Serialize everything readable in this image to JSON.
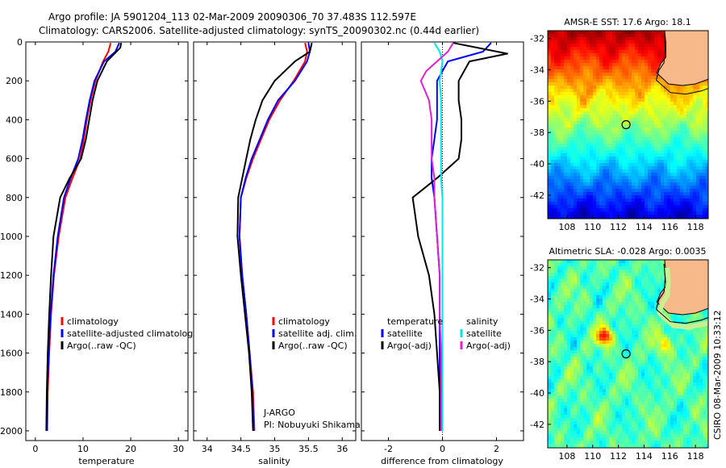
{
  "header": {
    "line1": "Argo profile: JA 5901204_113 02-Mar-2009 20090306_70 37.483S 112.597E",
    "line2": "Climatology: CARS2006. Satellite-adjusted climatology: synTS_20090302.nc (0.44d earlier)"
  },
  "colors": {
    "climatology": "#ff0000",
    "satellite": "#0000ff",
    "argo": "#000000",
    "sal_satellite": "#00e5e5",
    "sal_argo": "#e020d0",
    "land": "#f7b98a"
  },
  "chart_data": [
    {
      "type": "line",
      "panel": "temperature",
      "xlabel": "temperature",
      "ylabel": "",
      "xlim": [
        -2,
        32
      ],
      "ylim": [
        2050,
        0
      ],
      "y_reversed": true,
      "xticks": [
        "0",
        "10",
        "20",
        "30"
      ],
      "yticks": [
        "0",
        "200",
        "400",
        "600",
        "800",
        "1000",
        "1200",
        "1400",
        "1600",
        "1800",
        "2000"
      ],
      "legend": [
        "climatology",
        "satellite-adjusted climatolog",
        "Argo(..raw -QC)"
      ],
      "legend_position": "lower-right",
      "series": [
        {
          "name": "climatology",
          "x": [
            15.8,
            15.3,
            14.2,
            12.6,
            11.6,
            10.8,
            10.2,
            9.4,
            7.8,
            6.3,
            4.9,
            3.9,
            3.3,
            2.9,
            2.6,
            2.5
          ],
          "y": [
            5,
            50,
            100,
            200,
            300,
            400,
            500,
            600,
            700,
            800,
            1000,
            1200,
            1400,
            1600,
            1800,
            2000
          ]
        },
        {
          "name": "satellite-adjusted climatolog",
          "x": [
            17.6,
            16.8,
            14.4,
            12.4,
            11.4,
            10.6,
            9.9,
            9.0,
            7.4,
            6.0,
            4.7,
            3.8,
            3.2,
            2.8,
            2.5,
            2.4
          ],
          "y": [
            5,
            50,
            100,
            200,
            300,
            400,
            500,
            600,
            700,
            800,
            1000,
            1200,
            1400,
            1600,
            1800,
            2000
          ]
        },
        {
          "name": "Argo(..raw -QC)",
          "x": [
            18.0,
            17.8,
            15.0,
            13.0,
            12.0,
            11.3,
            10.6,
            9.6,
            7.2,
            5.2,
            3.8,
            3.3,
            2.9,
            2.6,
            2.4,
            2.3
          ],
          "y": [
            5,
            30,
            100,
            200,
            300,
            400,
            500,
            600,
            700,
            800,
            1000,
            1200,
            1400,
            1600,
            1800,
            2000
          ]
        }
      ]
    },
    {
      "type": "line",
      "panel": "salinity",
      "xlabel": "salinity",
      "xlim": [
        33.8,
        36.2
      ],
      "ylim": [
        2050,
        0
      ],
      "y_reversed": true,
      "xticks": [
        "34",
        "34.5",
        "35",
        "35.5",
        "36"
      ],
      "legend": [
        "climatology",
        "satellite adj. clim.",
        "Argo(..raw -QC)"
      ],
      "legend_position": "lower-right",
      "annotation": [
        "J-ARGO",
        "PI: Nobuyuki Shikama"
      ],
      "series": [
        {
          "name": "climatology",
          "x": [
            35.45,
            35.48,
            35.45,
            35.28,
            35.08,
            34.92,
            34.8,
            34.68,
            34.58,
            34.5,
            34.48,
            34.52,
            34.58,
            34.63,
            34.68,
            34.7
          ],
          "y": [
            5,
            50,
            100,
            200,
            300,
            400,
            500,
            600,
            700,
            800,
            1000,
            1200,
            1400,
            1600,
            1800,
            2000
          ]
        },
        {
          "name": "satellite adj. clim.",
          "x": [
            35.5,
            35.52,
            35.48,
            35.3,
            35.05,
            34.9,
            34.78,
            34.66,
            34.57,
            34.5,
            34.48,
            34.52,
            34.58,
            34.63,
            34.67,
            34.69
          ],
          "y": [
            5,
            50,
            100,
            200,
            300,
            400,
            500,
            600,
            700,
            800,
            1000,
            1200,
            1400,
            1600,
            1800,
            2000
          ]
        },
        {
          "name": "Argo(..raw -QC)",
          "x": [
            35.55,
            35.52,
            35.3,
            35.0,
            34.82,
            34.72,
            34.64,
            34.58,
            34.52,
            34.46,
            34.45,
            34.5,
            34.56,
            34.62,
            34.66,
            34.68
          ],
          "y": [
            5,
            50,
            100,
            200,
            300,
            400,
            500,
            600,
            700,
            800,
            1000,
            1200,
            1400,
            1600,
            1800,
            2000
          ]
        }
      ]
    },
    {
      "type": "line",
      "panel": "difference",
      "xlabel": "difference from climatology",
      "xlim": [
        -3,
        3
      ],
      "ylim": [
        2050,
        0
      ],
      "y_reversed": true,
      "xticks": [
        "-2",
        "0",
        "2"
      ],
      "legend": [
        "temperature",
        "satellite",
        "Argo(-adj)",
        "salinity",
        "satellite",
        "Argo(-adj)"
      ],
      "legend_position": "lower-center",
      "series": [
        {
          "name": "temperature satellite",
          "x": [
            1.8,
            1.5,
            0.2,
            -0.2,
            -0.2,
            -0.2,
            -0.3,
            -0.4,
            -0.4,
            -0.3,
            -0.2,
            -0.1,
            -0.1,
            -0.1,
            -0.1,
            -0.1
          ],
          "y": [
            5,
            50,
            100,
            200,
            300,
            400,
            500,
            600,
            700,
            800,
            1000,
            1200,
            1400,
            1600,
            1800,
            2000
          ]
        },
        {
          "name": "temperature Argo(-adj)",
          "x": [
            0.4,
            2.4,
            1.0,
            0.6,
            0.6,
            0.7,
            0.7,
            0.6,
            -0.2,
            -1.1,
            -0.9,
            -0.5,
            -0.3,
            -0.2,
            -0.1,
            -0.1
          ],
          "y": [
            5,
            60,
            100,
            200,
            300,
            400,
            500,
            600,
            700,
            800,
            1000,
            1200,
            1400,
            1600,
            1800,
            2000
          ]
        },
        {
          "name": "salinity satellite",
          "x": [
            -0.3,
            -0.1,
            0.0,
            -0.1,
            -0.05,
            -0.05,
            -0.05,
            -0.05,
            -0.05,
            0.0,
            0.0,
            0.0,
            0.0,
            0.0,
            0.0,
            0.0
          ],
          "y": [
            5,
            50,
            100,
            200,
            300,
            400,
            500,
            600,
            700,
            800,
            1000,
            1200,
            1400,
            1600,
            1800,
            2000
          ]
        },
        {
          "name": "salinity Argo(-adj)",
          "x": [
            0.4,
            0.2,
            -0.6,
            -0.8,
            -0.5,
            -0.4,
            -0.4,
            -0.4,
            -0.3,
            -0.3,
            -0.2,
            -0.1,
            -0.1,
            -0.05,
            -0.05,
            -0.05
          ],
          "y": [
            5,
            50,
            150,
            200,
            300,
            400,
            500,
            600,
            700,
            800,
            1000,
            1200,
            1400,
            1600,
            1800,
            2000
          ]
        }
      ]
    },
    {
      "type": "heatmap",
      "panel": "sst_map",
      "title": "AMSR-E SST: 17.6 Argo: 18.1",
      "xlim": [
        106.5,
        119
      ],
      "ylim": [
        -43.5,
        -31.5
      ],
      "xticks": [
        "108",
        "110",
        "112",
        "114",
        "116",
        "118"
      ],
      "yticks": [
        "-32",
        "-34",
        "-36",
        "-38",
        "-40",
        "-42"
      ],
      "marker": {
        "lon": 112.6,
        "lat": -37.5
      }
    },
    {
      "type": "heatmap",
      "panel": "sla_map",
      "title": "Altimetric SLA: -0.028 Argo: 0.0035",
      "xlim": [
        106.5,
        119
      ],
      "ylim": [
        -43.5,
        -31.5
      ],
      "xticks": [
        "108",
        "110",
        "112",
        "114",
        "116",
        "118"
      ],
      "yticks": [
        "-32",
        "-34",
        "-36",
        "-38",
        "-40",
        "-42"
      ],
      "marker": {
        "lon": 112.6,
        "lat": -37.5
      }
    }
  ],
  "footer": {
    "credit": "CSIRO 08-Mar-2009 10:33:12"
  }
}
